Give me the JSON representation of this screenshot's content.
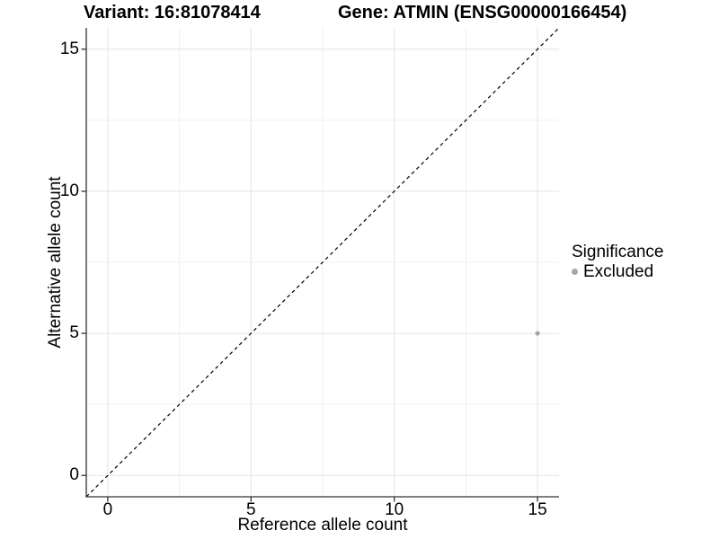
{
  "header": {
    "variant_title": "Variant: 16:81078414",
    "gene_title": "Gene: ATMIN (ENSG00000166454)"
  },
  "chart_data": {
    "type": "scatter",
    "title": "Variant: 16:81078414    Gene: ATMIN (ENSG00000166454)",
    "xlabel": "Reference allele count",
    "ylabel": "Alternative allele count",
    "xlim": [
      -0.75,
      15.75
    ],
    "ylim": [
      -0.75,
      15.75
    ],
    "x_major_ticks": [
      0,
      5,
      10,
      15
    ],
    "y_major_ticks": [
      0,
      5,
      10,
      15
    ],
    "x_minor_ticks": [
      2.5,
      7.5,
      12.5
    ],
    "y_minor_ticks": [
      2.5,
      7.5,
      12.5
    ],
    "grid": true,
    "legend_position": "right",
    "reference_line": {
      "style": "dashed",
      "from": [
        -0.75,
        -0.75
      ],
      "to": [
        15.75,
        15.75
      ]
    },
    "series": [
      {
        "name": "Excluded",
        "color": "#a6a6a6",
        "points": [
          {
            "x": 15,
            "y": 5
          }
        ]
      }
    ],
    "legend": {
      "title": "Significance",
      "items": [
        {
          "label": "Excluded",
          "color": "#a6a6a6"
        }
      ]
    }
  },
  "colors": {
    "background": "#ffffff",
    "grid_major": "#e4e4e4",
    "grid_minor": "#f0f0f0",
    "axis_line": "#333333",
    "reference_line": "#000000",
    "text": "#000000",
    "excluded_point": "#a6a6a6"
  }
}
